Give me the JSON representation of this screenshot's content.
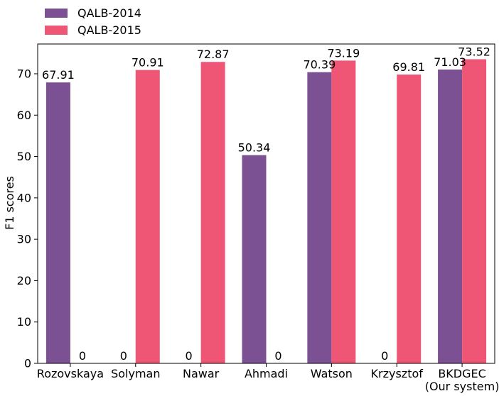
{
  "chart_data": {
    "type": "bar",
    "categories": [
      "Rozovskaya",
      "Solyman",
      "Nawar",
      "Ahmadi",
      "Watson",
      "Krzysztof",
      "BKDGEC\n(Our system)"
    ],
    "series": [
      {
        "name": "QALB-2014",
        "color": "#7b5193",
        "values": [
          67.91,
          0,
          0,
          50.34,
          70.39,
          0,
          71.03
        ],
        "labels": [
          "67.91",
          "0",
          "0",
          "50.34",
          "70.39",
          "0",
          "71.03"
        ]
      },
      {
        "name": "QALB-2015",
        "color": "#ef5675",
        "values": [
          0,
          70.91,
          72.87,
          0,
          73.19,
          69.81,
          73.52
        ],
        "labels": [
          "0",
          "70.91",
          "72.87",
          "0",
          "73.19",
          "69.81",
          "73.52"
        ]
      }
    ],
    "xlabel": "",
    "ylabel": "F1 scores",
    "ylim": [
      0,
      77.2
    ],
    "yticks": [
      0,
      10,
      20,
      30,
      40,
      50,
      60,
      70
    ],
    "legend_position": "top-left, above plot",
    "grid": false
  }
}
